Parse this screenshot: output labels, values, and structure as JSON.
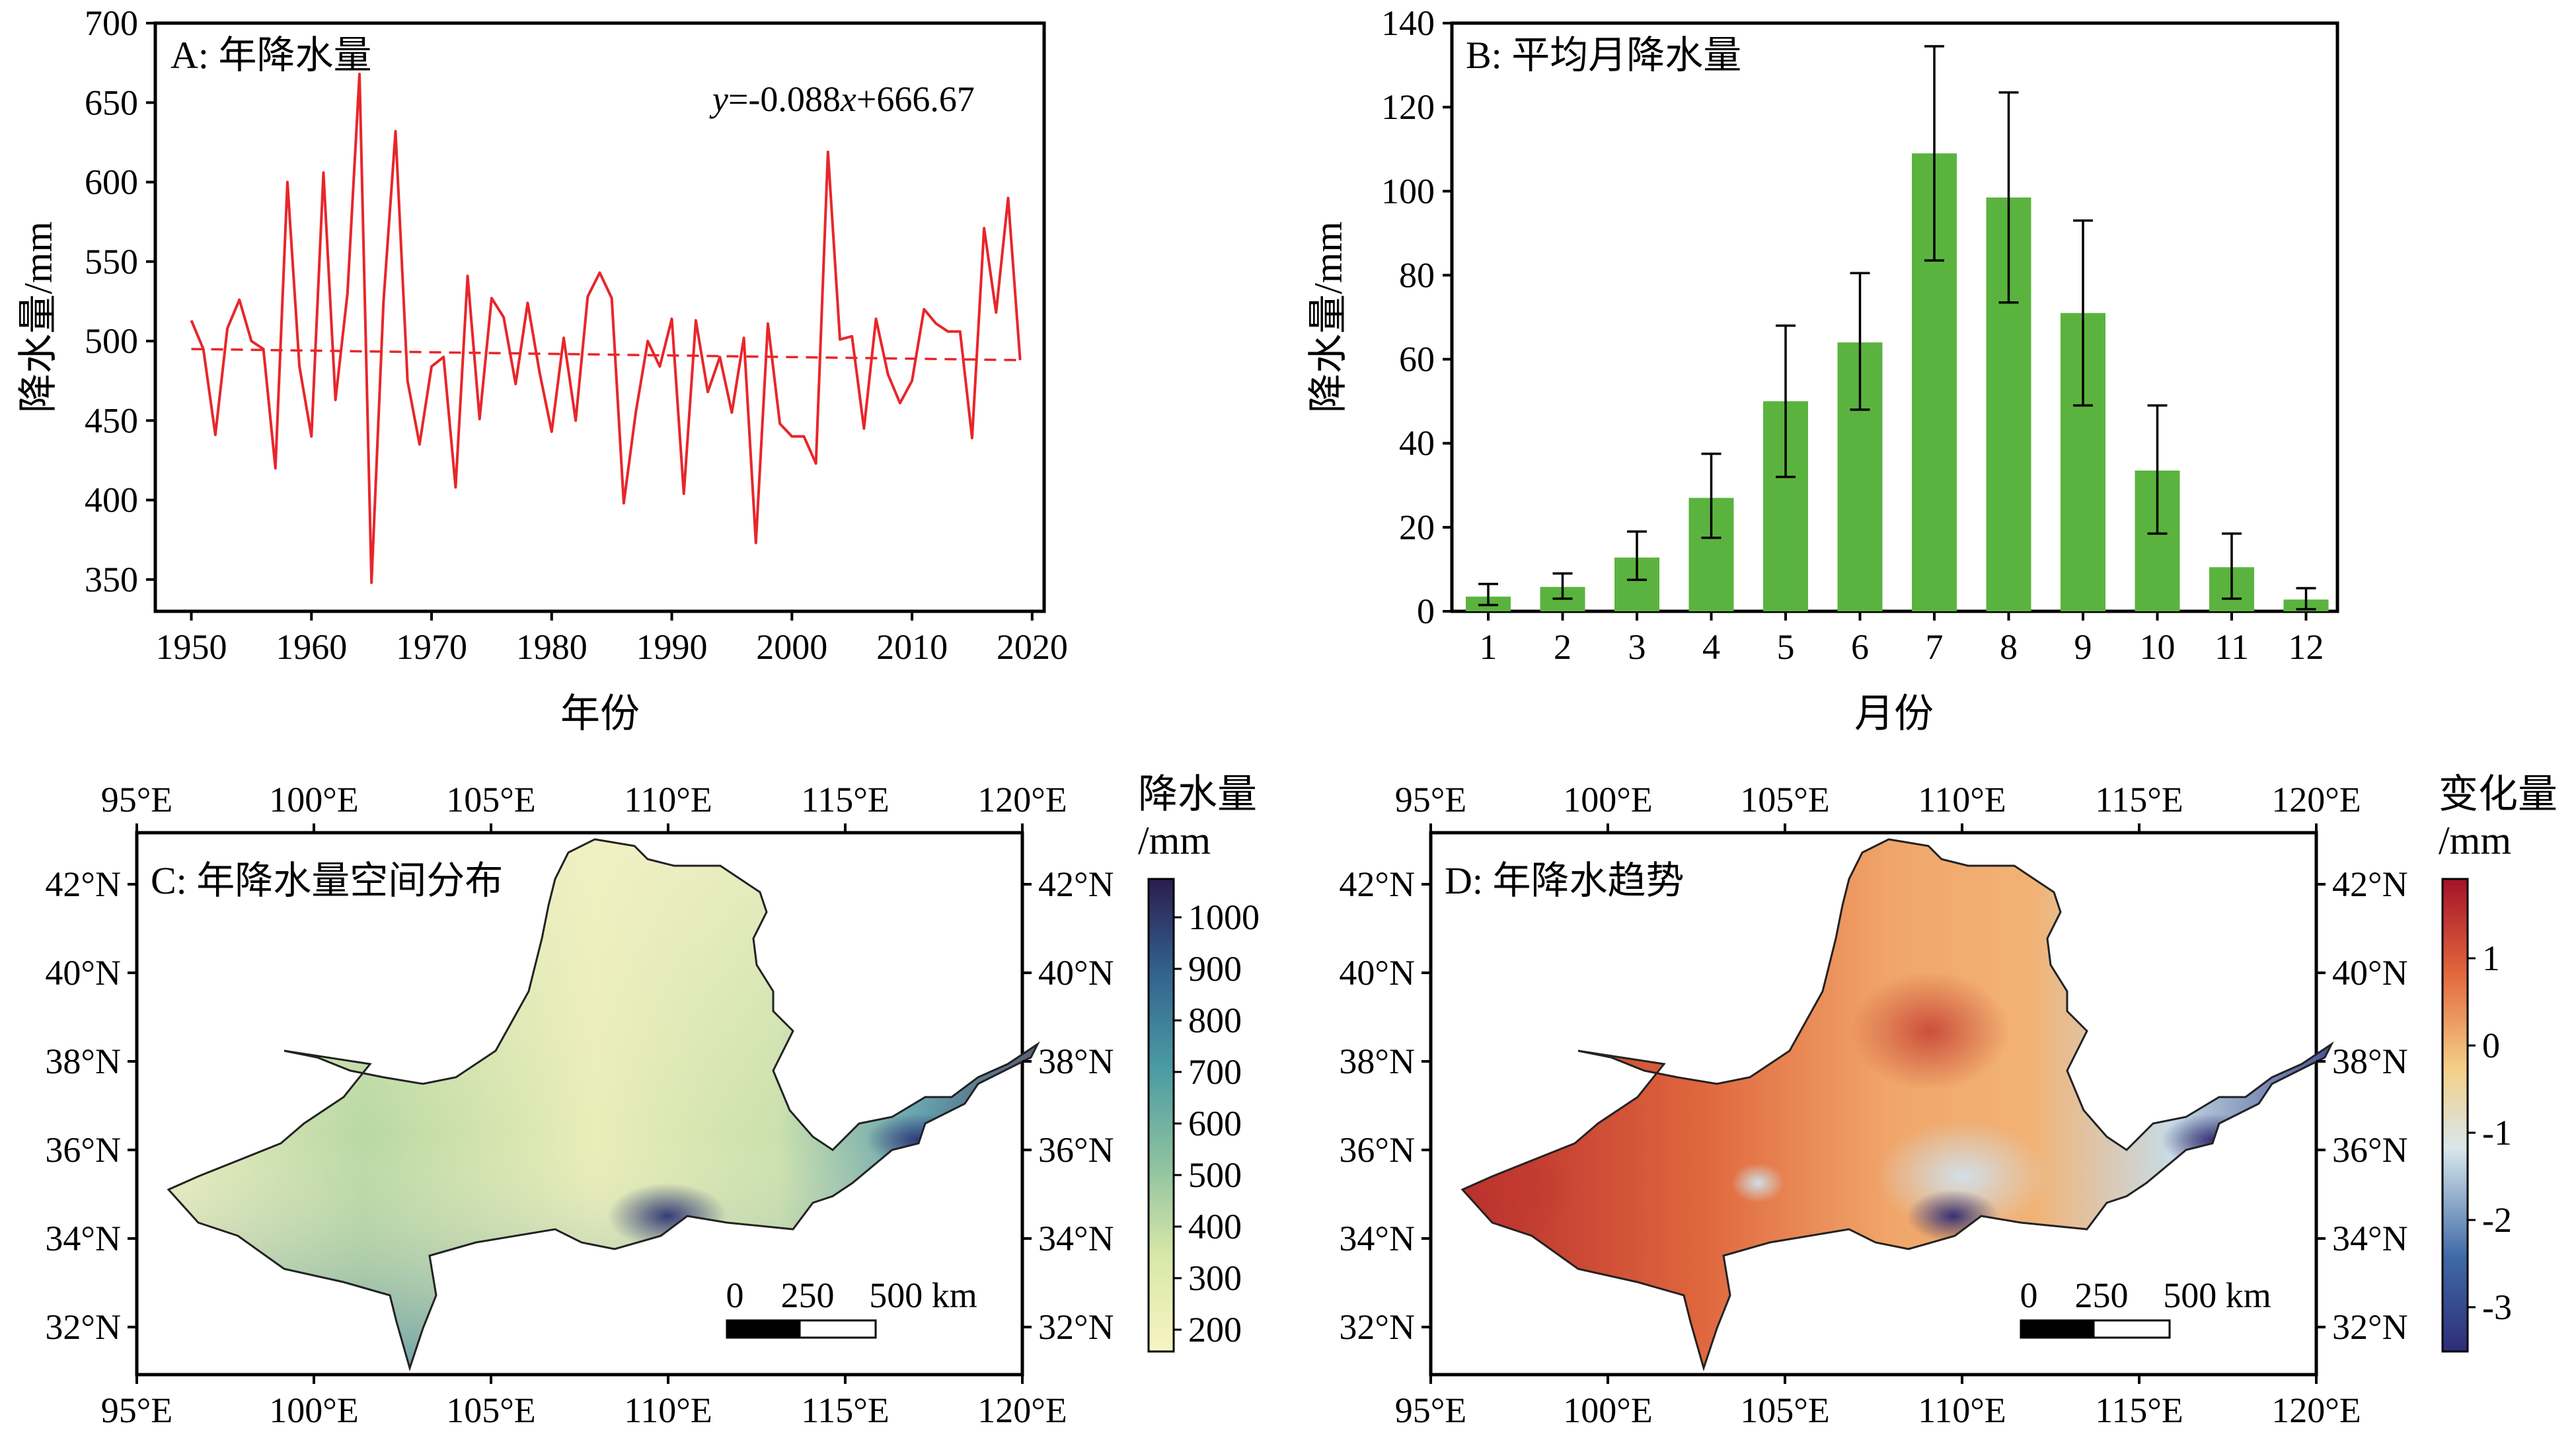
{
  "panels": {
    "a_title": "A: 年降水量",
    "b_title": "B: 平均月降水量",
    "c_title": "C: 年降水量空间分布",
    "d_title": "D: 年降水趋势"
  },
  "colorbar_c": {
    "title_1": "降水量",
    "title_2": "/mm",
    "ticks": [
      "1000",
      "900",
      "800",
      "700",
      "600",
      "500",
      "400",
      "300",
      "200"
    ]
  },
  "colorbar_d": {
    "title_1": "变化量",
    "title_2": "/mm",
    "ticks": [
      "1",
      "0",
      "-1",
      "-2",
      "-3"
    ]
  },
  "map_axes": {
    "lon_ticks": [
      "95°E",
      "100°E",
      "105°E",
      "110°E",
      "115°E",
      "120°E"
    ],
    "lat_ticks": [
      "42°N",
      "40°N",
      "38°N",
      "36°N",
      "34°N",
      "32°N"
    ]
  },
  "scalebar": {
    "labels": [
      "0",
      "250",
      "500 km"
    ]
  },
  "colors": {
    "line_red": "#e8262a",
    "bar_green": "#5bb33f",
    "precip_low": "#f7f4c4",
    "precip_high": "#2b1d4f",
    "trend_high": "#a5122a",
    "trend_low": "#2f2d78"
  },
  "chart_data": [
    {
      "type": "line",
      "title": "A: 年降水量",
      "xlabel": "年份",
      "ylabel": "降水量/mm",
      "xlim": [
        1947,
        2021
      ],
      "ylim": [
        330,
        700
      ],
      "xticks": [
        1950,
        1960,
        1970,
        1980,
        1990,
        2000,
        2010,
        2020
      ],
      "yticks": [
        350,
        400,
        450,
        500,
        550,
        600,
        650,
        700
      ],
      "annotation": {
        "y": "y",
        "eq1": "=-0.088",
        "x": "x",
        "eq2": "+666.67"
      },
      "trend": {
        "slope": -0.088,
        "intercept": 666.67
      },
      "x": [
        1950,
        1951,
        1952,
        1953,
        1954,
        1955,
        1956,
        1957,
        1958,
        1959,
        1960,
        1961,
        1962,
        1963,
        1964,
        1965,
        1966,
        1967,
        1968,
        1969,
        1970,
        1971,
        1972,
        1973,
        1974,
        1975,
        1976,
        1977,
        1978,
        1979,
        1980,
        1981,
        1982,
        1983,
        1984,
        1985,
        1986,
        1987,
        1988,
        1989,
        1990,
        1991,
        1992,
        1993,
        1994,
        1995,
        1996,
        1997,
        1998,
        1999,
        2000,
        2001,
        2002,
        2003,
        2004,
        2005,
        2006,
        2007,
        2008,
        2009,
        2010,
        2011,
        2012,
        2013,
        2014,
        2015,
        2016,
        2017,
        2018,
        2019
      ],
      "y": [
        513,
        495,
        441,
        508,
        526,
        500,
        495,
        420,
        600,
        484,
        440,
        606,
        463,
        530,
        668,
        348,
        525,
        632,
        475,
        435,
        484,
        490,
        408,
        541,
        451,
        527,
        515,
        473,
        524,
        480,
        443,
        502,
        450,
        528,
        543,
        527,
        398,
        455,
        500,
        484,
        514,
        404,
        513,
        468,
        490,
        455,
        502,
        373,
        511,
        448,
        440,
        440,
        423,
        619,
        501,
        503,
        445,
        514,
        479,
        461,
        475,
        520,
        511,
        506,
        506,
        439,
        571,
        518,
        590,
        488
      ]
    },
    {
      "type": "bar",
      "title": "B: 平均月降水量",
      "xlabel": "月份",
      "ylabel": "降水量/mm",
      "ylim": [
        0,
        140
      ],
      "yticks": [
        0,
        20,
        40,
        60,
        80,
        100,
        120,
        140
      ],
      "categories": [
        "1",
        "2",
        "3",
        "4",
        "5",
        "6",
        "7",
        "8",
        "9",
        "10",
        "11",
        "12"
      ],
      "values": [
        3.5,
        5.8,
        12.8,
        27,
        50,
        64,
        109,
        98.5,
        71,
        33.5,
        10.5,
        2.8
      ],
      "error_low": [
        1.5,
        3,
        7.5,
        17.5,
        32,
        48,
        83.5,
        73.5,
        49,
        18.5,
        3,
        0.5
      ],
      "error_high": [
        6.5,
        9,
        19,
        37.5,
        68,
        80.5,
        134.5,
        123.5,
        93,
        49,
        18.5,
        5.5
      ]
    }
  ]
}
